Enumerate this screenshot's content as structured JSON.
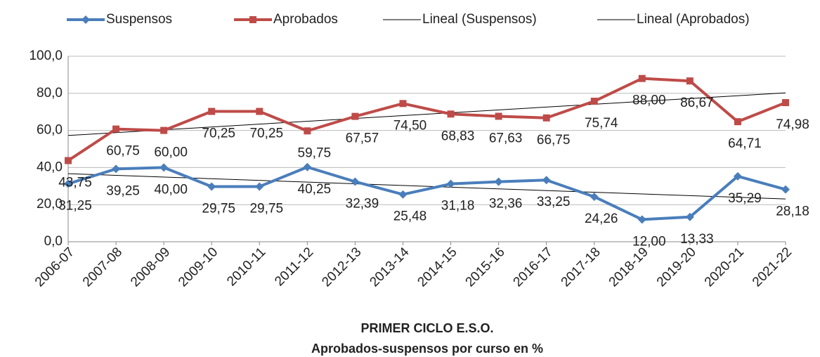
{
  "chart_data": {
    "type": "line",
    "title": "PRIMER  CICLO E.S.O.",
    "subtitle": "Aprobados-suspensos por curso en %",
    "categories": [
      "2006-07",
      "2007-08",
      "2008-09",
      "2009-10",
      "2010-11",
      "2011-12",
      "2012-13",
      "2013-14",
      "2014-15",
      "2015-16",
      "2016-17",
      "2017-18",
      "2018-19",
      "2019-20",
      "2020-21",
      "2021-22"
    ],
    "series": [
      {
        "name": "Suspensos",
        "color": "#4a7ebb",
        "values": [
          31.25,
          39.25,
          40.0,
          29.75,
          29.75,
          40.25,
          32.39,
          25.48,
          31.18,
          32.36,
          33.25,
          24.26,
          12.0,
          13.33,
          35.29,
          28.18
        ],
        "value_labels": [
          "31,25",
          "39,25",
          "40,00",
          "29,75",
          "29,75",
          "40,25",
          "32,39",
          "25,48",
          "31,18",
          "32,36",
          "33,25",
          "24,26",
          "12,00",
          "13,33",
          "35,29",
          "28,18"
        ]
      },
      {
        "name": "Aprobados",
        "color": "#be4b48",
        "values": [
          43.75,
          60.75,
          60.0,
          70.25,
          70.25,
          59.75,
          67.57,
          74.5,
          68.83,
          67.63,
          66.75,
          75.74,
          88.0,
          86.67,
          64.71,
          74.98
        ],
        "value_labels": [
          "43,75",
          "60,75",
          "60,00",
          "70,25",
          "70,25",
          "59,75",
          "67,57",
          "74,50",
          "68,83",
          "67,63",
          "66,75",
          "75,74",
          "88,00",
          "86,67",
          "64,71",
          "74,98"
        ]
      }
    ],
    "trendlines": [
      {
        "name": "Lineal (Suspensos)",
        "color": "#000000",
        "of": 0
      },
      {
        "name": "Lineal (Aprobados)",
        "color": "#000000",
        "of": 1
      }
    ],
    "ylim": [
      0,
      100
    ],
    "yticks": [
      {
        "value": 0,
        "label": "0,0"
      },
      {
        "value": 20,
        "label": "20,0"
      },
      {
        "value": 40,
        "label": "40,0"
      },
      {
        "value": 60,
        "label": "60,0"
      },
      {
        "value": 80,
        "label": "80,0"
      },
      {
        "value": 100,
        "label": "100,0"
      }
    ],
    "grid": true
  }
}
